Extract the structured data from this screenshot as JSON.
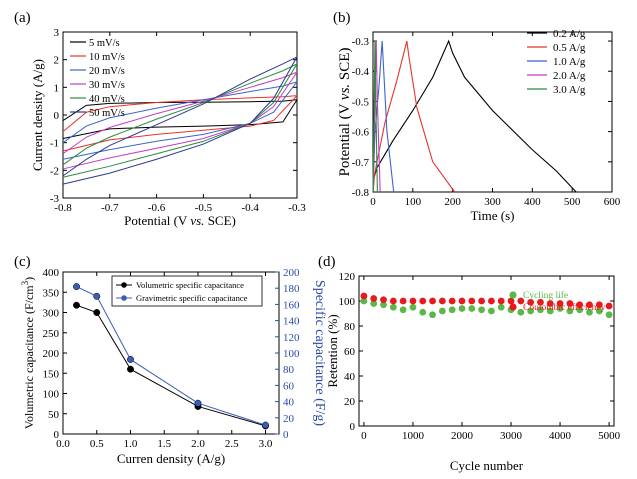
{
  "chart_data": [
    {
      "panel": "(a)",
      "type": "line",
      "xlabel": "Potential (V vs. SCE)",
      "xlabel_parts": [
        "Potential (V ",
        "vs.",
        " SCE)"
      ],
      "ylabel": "Current density (A/g)",
      "xlim": [
        -0.8,
        -0.3
      ],
      "ylim": [
        -3,
        3
      ],
      "xticks": [
        -0.8,
        -0.7,
        -0.6,
        -0.5,
        -0.4,
        -0.3
      ],
      "xtick_labels": [
        "-0.8",
        "-0.7",
        "-0.6",
        "-0.5",
        "-0.4",
        "-0.3"
      ],
      "yticks": [
        -3,
        -2,
        -1,
        0,
        1,
        2,
        3
      ],
      "ytick_labels": [
        "-3",
        "-2",
        "-1",
        "0",
        "1",
        "2",
        "3"
      ],
      "legend": "top-left",
      "series": [
        {
          "name": "5 mV/s",
          "color": "#000000",
          "upper": [
            [
              -0.8,
              -0.2
            ],
            [
              -0.75,
              0.35
            ],
            [
              -0.7,
              0.42
            ],
            [
              -0.6,
              0.45
            ],
            [
              -0.5,
              0.46
            ],
            [
              -0.4,
              0.48
            ],
            [
              -0.33,
              0.5
            ],
            [
              -0.3,
              0.55
            ]
          ],
          "lower": [
            [
              -0.8,
              -0.85
            ],
            [
              -0.7,
              -0.5
            ],
            [
              -0.6,
              -0.44
            ],
            [
              -0.5,
              -0.4
            ],
            [
              -0.4,
              -0.35
            ],
            [
              -0.33,
              -0.25
            ],
            [
              -0.3,
              0.55
            ]
          ]
        },
        {
          "name": "10 mV/s",
          "color": "#e8332b",
          "upper": [
            [
              -0.8,
              -0.6
            ],
            [
              -0.75,
              0.1
            ],
            [
              -0.7,
              0.3
            ],
            [
              -0.6,
              0.45
            ],
            [
              -0.5,
              0.55
            ],
            [
              -0.4,
              0.62
            ],
            [
              -0.33,
              0.66
            ],
            [
              -0.3,
              0.7
            ]
          ],
          "lower": [
            [
              -0.8,
              -1.3
            ],
            [
              -0.7,
              -0.9
            ],
            [
              -0.6,
              -0.7
            ],
            [
              -0.5,
              -0.55
            ],
            [
              -0.4,
              -0.4
            ],
            [
              -0.35,
              -0.2
            ],
            [
              -0.3,
              0.7
            ]
          ]
        },
        {
          "name": "20 mV/s",
          "color": "#3b64c8",
          "upper": [
            [
              -0.8,
              -1.0
            ],
            [
              -0.75,
              -0.4
            ],
            [
              -0.7,
              -0.1
            ],
            [
              -0.6,
              0.25
            ],
            [
              -0.5,
              0.55
            ],
            [
              -0.4,
              0.85
            ],
            [
              -0.33,
              1.05
            ],
            [
              -0.3,
              1.2
            ]
          ],
          "lower": [
            [
              -0.8,
              -1.6
            ],
            [
              -0.7,
              -1.25
            ],
            [
              -0.6,
              -0.95
            ],
            [
              -0.5,
              -0.7
            ],
            [
              -0.4,
              -0.3
            ],
            [
              -0.35,
              0.1
            ],
            [
              -0.3,
              1.2
            ]
          ]
        },
        {
          "name": "30 mV/s",
          "color": "#c43cc4",
          "upper": [
            [
              -0.8,
              -1.4
            ],
            [
              -0.75,
              -0.8
            ],
            [
              -0.7,
              -0.45
            ],
            [
              -0.6,
              0.05
            ],
            [
              -0.5,
              0.5
            ],
            [
              -0.4,
              1.0
            ],
            [
              -0.33,
              1.35
            ],
            [
              -0.3,
              1.55
            ]
          ],
          "lower": [
            [
              -0.8,
              -1.95
            ],
            [
              -0.7,
              -1.55
            ],
            [
              -0.6,
              -1.2
            ],
            [
              -0.5,
              -0.85
            ],
            [
              -0.4,
              -0.3
            ],
            [
              -0.35,
              0.3
            ],
            [
              -0.3,
              1.55
            ]
          ]
        },
        {
          "name": "40 mV/s",
          "color": "#2e8b3c",
          "upper": [
            [
              -0.8,
              -1.8
            ],
            [
              -0.75,
              -1.2
            ],
            [
              -0.7,
              -0.8
            ],
            [
              -0.6,
              -0.15
            ],
            [
              -0.5,
              0.45
            ],
            [
              -0.4,
              1.15
            ],
            [
              -0.33,
              1.6
            ],
            [
              -0.3,
              1.85
            ]
          ],
          "lower": [
            [
              -0.8,
              -2.25
            ],
            [
              -0.7,
              -1.85
            ],
            [
              -0.6,
              -1.4
            ],
            [
              -0.5,
              -0.95
            ],
            [
              -0.4,
              -0.3
            ],
            [
              -0.35,
              0.45
            ],
            [
              -0.3,
              1.85
            ]
          ]
        },
        {
          "name": "50 mV/s",
          "color": "#2b3990",
          "upper": [
            [
              -0.8,
              -2.2
            ],
            [
              -0.75,
              -1.6
            ],
            [
              -0.7,
              -1.1
            ],
            [
              -0.6,
              -0.35
            ],
            [
              -0.5,
              0.4
            ],
            [
              -0.4,
              1.3
            ],
            [
              -0.33,
              1.85
            ],
            [
              -0.3,
              2.1
            ]
          ],
          "lower": [
            [
              -0.8,
              -2.5
            ],
            [
              -0.7,
              -2.1
            ],
            [
              -0.6,
              -1.6
            ],
            [
              -0.5,
              -1.05
            ],
            [
              -0.4,
              -0.3
            ],
            [
              -0.35,
              0.6
            ],
            [
              -0.3,
              2.1
            ]
          ]
        }
      ]
    },
    {
      "panel": "(b)",
      "type": "line",
      "xlabel": "Time (s)",
      "ylabel": "Potential (V vs. SCE)",
      "ylabel_parts": [
        "Potential (V ",
        "vs.",
        " SCE)"
      ],
      "xlim": [
        0,
        600
      ],
      "ylim": [
        -0.8,
        -0.27
      ],
      "xticks": [
        0,
        100,
        200,
        300,
        400,
        500,
        600
      ],
      "xtick_labels": [
        "0",
        "100",
        "200",
        "300",
        "400",
        "500",
        "600"
      ],
      "yticks": [
        -0.8,
        -0.7,
        -0.6,
        -0.5,
        -0.4,
        -0.3
      ],
      "ytick_labels": [
        "-0.8",
        "-0.7",
        "-0.6",
        "-0.5",
        "-0.4",
        "-0.3"
      ],
      "legend": "top-right",
      "series": [
        {
          "name": "0.2 A/g",
          "color": "#000000",
          "points": [
            [
              0,
              -0.8
            ],
            [
              3,
              -0.75
            ],
            [
              10,
              -0.72
            ],
            [
              50,
              -0.63
            ],
            [
              100,
              -0.53
            ],
            [
              150,
              -0.42
            ],
            [
              190,
              -0.3
            ],
            [
              200,
              -0.34
            ],
            [
              230,
              -0.42
            ],
            [
              300,
              -0.53
            ],
            [
              400,
              -0.66
            ],
            [
              460,
              -0.73
            ],
            [
              510,
              -0.8
            ]
          ]
        },
        {
          "name": "0.5 A/g",
          "color": "#e8332b",
          "points": [
            [
              0,
              -0.8
            ],
            [
              3,
              -0.75
            ],
            [
              10,
              -0.7
            ],
            [
              30,
              -0.57
            ],
            [
              60,
              -0.43
            ],
            [
              85,
              -0.3
            ],
            [
              90,
              -0.35
            ],
            [
              110,
              -0.52
            ],
            [
              150,
              -0.7
            ],
            [
              205,
              -0.8
            ]
          ]
        },
        {
          "name": "1.0 A/g",
          "color": "#3b64c8",
          "points": [
            [
              0,
              -0.8
            ],
            [
              5,
              -0.6
            ],
            [
              15,
              -0.45
            ],
            [
              23,
              -0.3
            ],
            [
              27,
              -0.4
            ],
            [
              35,
              -0.6
            ],
            [
              52,
              -0.8
            ]
          ]
        },
        {
          "name": "2.0 A/g",
          "color": "#c43cc4",
          "points": [
            [
              0,
              -0.8
            ],
            [
              4,
              -0.55
            ],
            [
              8,
              -0.3
            ],
            [
              11,
              -0.5
            ],
            [
              18,
              -0.8
            ]
          ]
        },
        {
          "name": "3.0 A/g",
          "color": "#2e8b3c",
          "points": [
            [
              0,
              -0.8
            ],
            [
              3,
              -0.5
            ],
            [
              5,
              -0.3
            ],
            [
              7,
              -0.5
            ],
            [
              11,
              -0.8
            ]
          ]
        }
      ]
    },
    {
      "panel": "(c)",
      "type": "line",
      "xlabel": "Curren density (A/g)",
      "ylabel": "Volumetric capacitance (F/cm³)",
      "ylabel_parts": [
        "Volumetric capacitance (F/cm",
        "3",
        ")"
      ],
      "ylabel_right": "Specific capacitance (F/g)",
      "xlim": [
        0,
        3.2
      ],
      "ylim": [
        0,
        400
      ],
      "ylim_right": [
        0,
        200
      ],
      "xticks": [
        0,
        0.5,
        1.0,
        1.5,
        2.0,
        2.5,
        3.0
      ],
      "xtick_labels": [
        "0.0",
        "0.5",
        "1.0",
        "1.5",
        "2.0",
        "2.5",
        "3.0"
      ],
      "yticks": [
        0,
        50,
        100,
        150,
        200,
        250,
        300,
        350,
        400
      ],
      "ytick_labels": [
        "0",
        "50",
        "100",
        "150",
        "200",
        "250",
        "300",
        "350",
        "400"
      ],
      "yticks_right": [
        0,
        20,
        40,
        60,
        80,
        100,
        120,
        140,
        160,
        180,
        200
      ],
      "ytick_labels_right": [
        "0",
        "20",
        "40",
        "60",
        "80",
        "100",
        "120",
        "140",
        "160",
        "180",
        "200"
      ],
      "legend": "top-center",
      "series": [
        {
          "name": "Volumetric specific capacitance",
          "color": "#000000",
          "axis": "left",
          "x": [
            0.2,
            0.5,
            1.0,
            2.0,
            3.0
          ],
          "values": [
            318,
            300,
            160,
            68,
            20
          ]
        },
        {
          "name": "Gravimetric specific capacitance",
          "color": "#3b5cb8",
          "axis": "right",
          "x": [
            0.2,
            0.5,
            1.0,
            2.0,
            3.0
          ],
          "values": [
            182,
            170,
            92,
            38,
            11
          ]
        }
      ]
    },
    {
      "panel": "(d)",
      "type": "scatter",
      "xlabel": "Cycle number",
      "ylabel": "Retention (%)",
      "xlim": [
        -100,
        5100
      ],
      "ylim": [
        0,
        120
      ],
      "xticks": [
        0,
        1000,
        2000,
        3000,
        4000,
        5000
      ],
      "xtick_labels": [
        "0",
        "1000",
        "2000",
        "3000",
        "4000",
        "5000"
      ],
      "yticks": [
        0,
        20,
        40,
        60,
        80,
        100,
        120
      ],
      "ytick_labels": [
        "0",
        "20",
        "40",
        "60",
        "80",
        "100",
        "120"
      ],
      "legend": "top-center",
      "series": [
        {
          "name": "Cycling life",
          "color": "#5ab847",
          "x": [
            0,
            200,
            400,
            600,
            800,
            1000,
            1200,
            1400,
            1600,
            1800,
            2000,
            2200,
            2400,
            2600,
            2800,
            3000,
            3200,
            3400,
            3600,
            3800,
            4000,
            4200,
            4400,
            4600,
            4800,
            5000
          ],
          "values": [
            100,
            98,
            97,
            95,
            93,
            95,
            91,
            89,
            92,
            93,
            94,
            94,
            93,
            92,
            95,
            93,
            91,
            92,
            93,
            92,
            94,
            92,
            93,
            91,
            92,
            89
          ]
        },
        {
          "name": "Coulombic efficiency",
          "color": "#e8191c",
          "x": [
            0,
            200,
            400,
            600,
            800,
            1000,
            1200,
            1400,
            1600,
            1800,
            2000,
            2200,
            2400,
            2600,
            2800,
            3000,
            3200,
            3400,
            3600,
            3800,
            4000,
            4200,
            4400,
            4600,
            4800,
            5000
          ],
          "values": [
            104,
            102,
            101,
            100,
            100,
            100,
            100,
            100,
            100,
            100,
            100,
            100,
            100,
            100,
            100,
            100,
            100,
            99,
            99,
            98,
            98,
            98,
            97,
            97,
            97,
            96
          ]
        }
      ]
    }
  ]
}
